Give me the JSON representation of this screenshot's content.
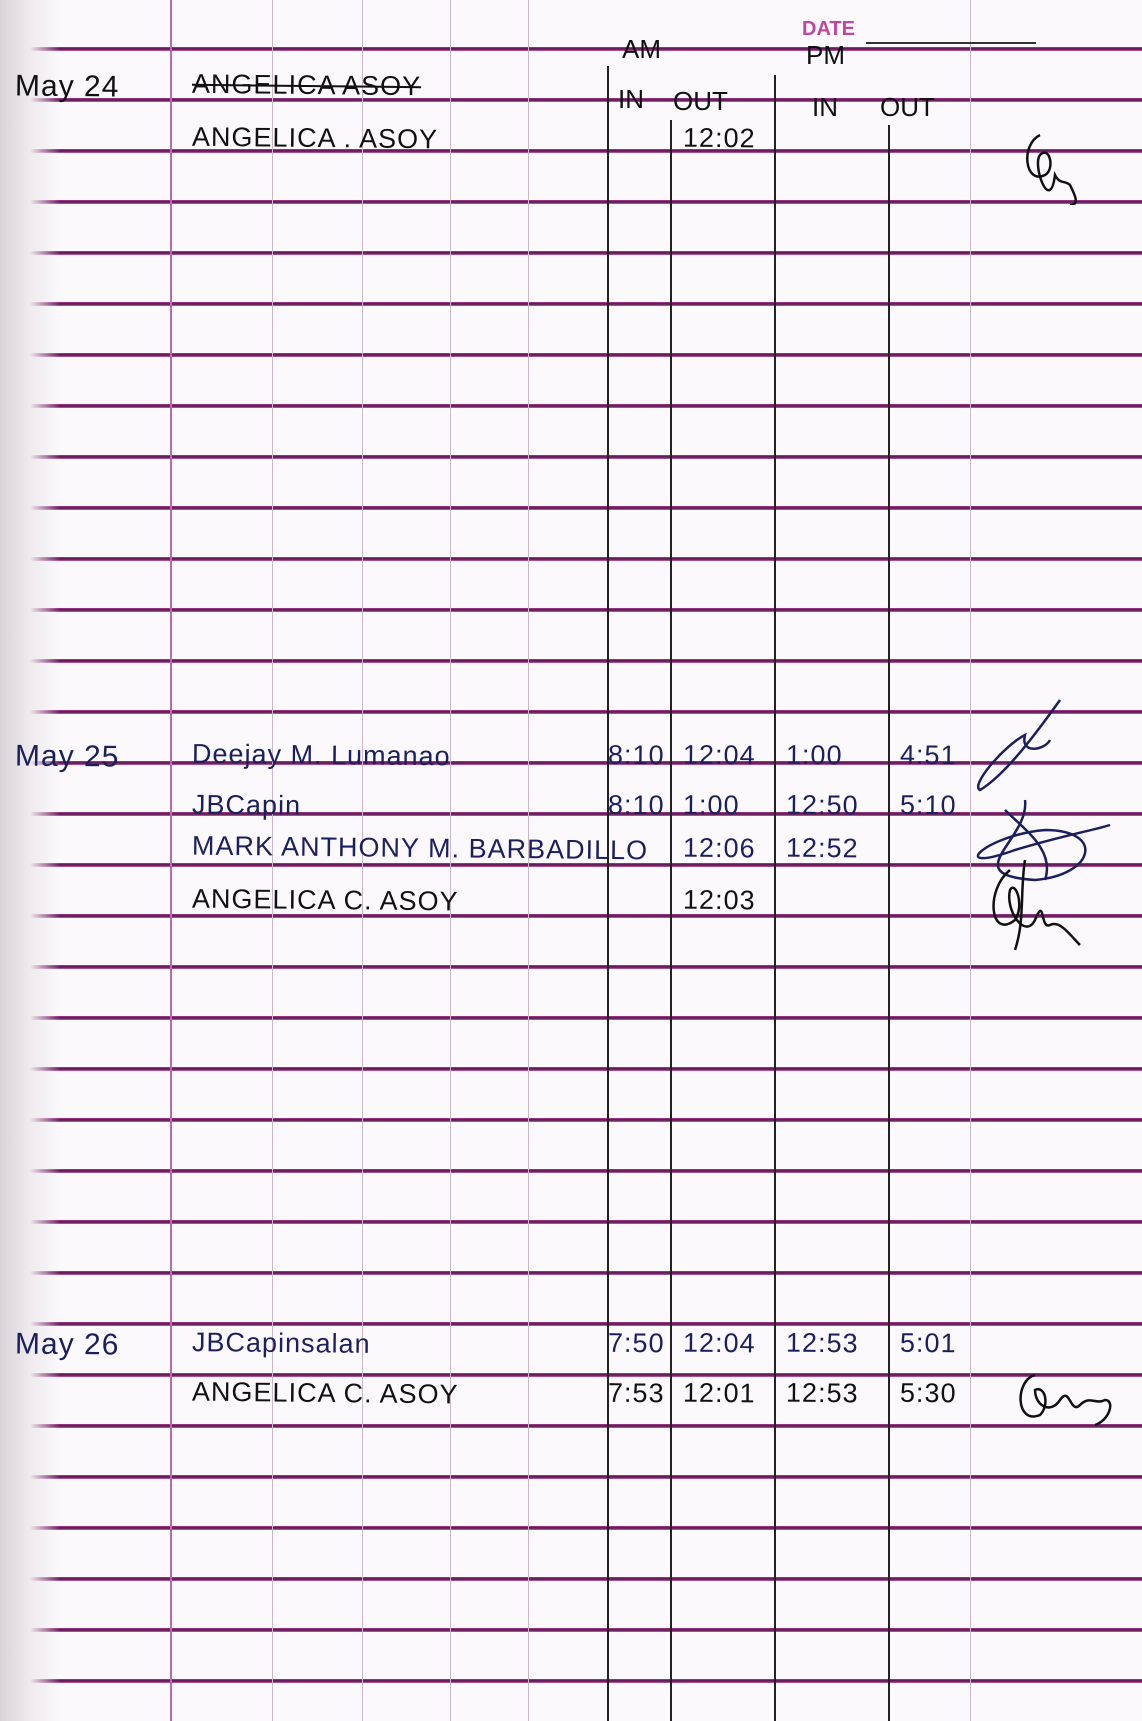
{
  "header": {
    "date_label": "DATE",
    "am_label": "AM",
    "pm_label": "PM",
    "in_label": "IN",
    "out_label": "OUT"
  },
  "entries": [
    {
      "date": "May 24",
      "name": "ANGELICA ASOY",
      "struck": true,
      "am_in": "",
      "am_out": "",
      "pm_in": "",
      "pm_out": ""
    },
    {
      "date": "",
      "name": "ANGELICA . ASOY",
      "am_in": "",
      "am_out": "12:02",
      "pm_in": "",
      "pm_out": "",
      "signed": true
    },
    {
      "date": "May 25",
      "name": "Deejay M. Lumanao",
      "am_in": "8:10",
      "am_out": "12:04",
      "pm_in": "1:00",
      "pm_out": "4:51",
      "signed": true
    },
    {
      "date": "",
      "name": "JBCapin",
      "am_in": "8:10",
      "am_out": "1:00",
      "pm_in": "12:50",
      "pm_out": "5:10",
      "signed": true
    },
    {
      "date": "",
      "name": "MARK ANTHONY M. BARBADILLO",
      "am_in": "",
      "am_out": "12:06",
      "pm_in": "12:52",
      "pm_out": "",
      "signed": true
    },
    {
      "date": "",
      "name": "ANGELICA C. ASOY",
      "am_in": "",
      "am_out": "12:03",
      "pm_in": "",
      "pm_out": "",
      "signed": true
    },
    {
      "date": "May 26",
      "name": "JBCapinsalan",
      "am_in": "7:50",
      "am_out": "12:04",
      "pm_in": "12:53",
      "pm_out": "5:01"
    },
    {
      "date": "",
      "name": "ANGELICA C. ASOY",
      "am_in": "7:53",
      "am_out": "12:01",
      "pm_in": "12:53",
      "pm_out": "5:30",
      "signed": true
    }
  ]
}
